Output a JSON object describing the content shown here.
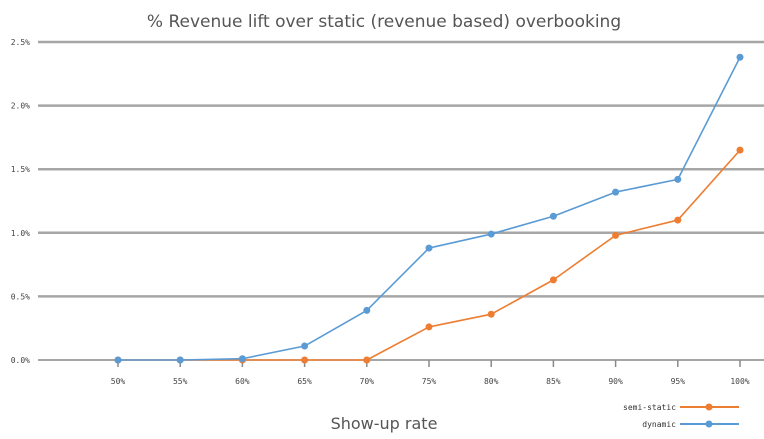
{
  "chart_data": {
    "type": "line",
    "title": "% Revenue lift over static (revenue based) overbooking",
    "xlabel": "Show-up rate",
    "ylabel": "",
    "categories": [
      "50%",
      "55%",
      "60%",
      "65%",
      "70%",
      "75%",
      "80%",
      "85%",
      "90%",
      "95%",
      "100%"
    ],
    "y_ticks": [
      "0.0%",
      "0.5%",
      "1.0%",
      "1.5%",
      "2.0%",
      "2.5%"
    ],
    "ylim": [
      0,
      2.5
    ],
    "grid": true,
    "legend_position": "bottom-right",
    "series": [
      {
        "name": "semi-static",
        "color": "#ED7D31",
        "values": [
          0.0,
          0.0,
          0.0,
          0.0,
          0.0,
          0.26,
          0.36,
          0.63,
          0.98,
          1.1,
          1.65
        ]
      },
      {
        "name": "dynamic",
        "color": "#5B9BD5",
        "values": [
          0.0,
          0.0,
          0.01,
          0.11,
          0.39,
          0.88,
          0.99,
          1.13,
          1.32,
          1.42,
          2.38
        ]
      }
    ]
  }
}
